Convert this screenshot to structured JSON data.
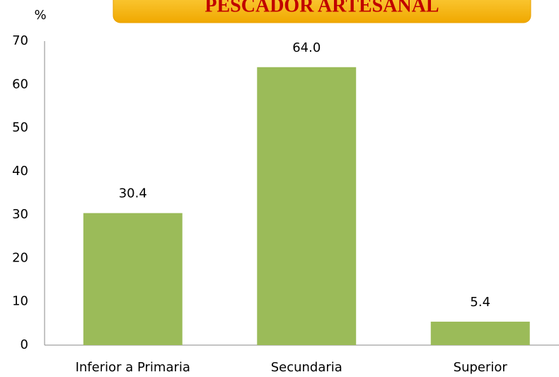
{
  "chart_data": {
    "type": "bar",
    "title": "PESCADOR ARTESANAL",
    "y_label": "%",
    "categories": [
      "Inferior a Primaria",
      "Secundaria",
      "Superior"
    ],
    "values": [
      30.4,
      64.0,
      5.4
    ],
    "value_labels": [
      "30.4",
      "64.0",
      "5.4"
    ],
    "color": "#9bbb59",
    "ylim": [
      0,
      70
    ],
    "yticks": [
      0,
      10,
      20,
      30,
      40,
      50,
      60,
      70
    ],
    "grid": false
  }
}
